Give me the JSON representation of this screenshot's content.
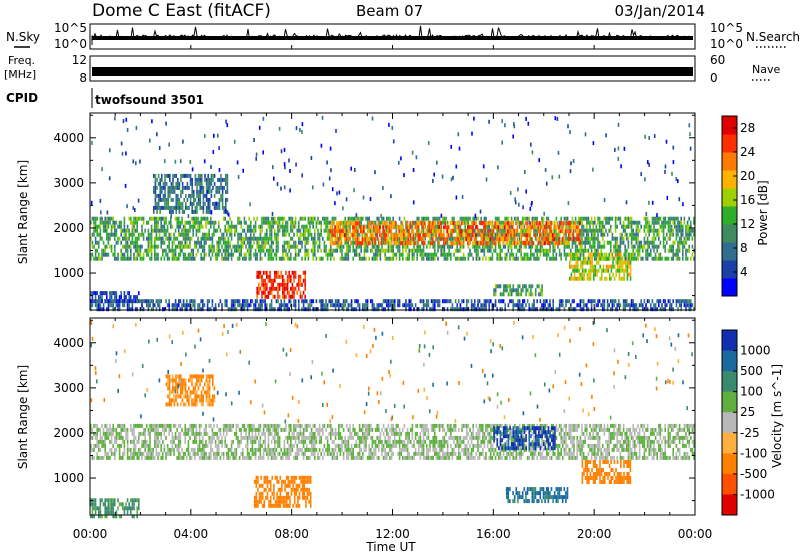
{
  "header": {
    "title": "Dome C East (fitACF)",
    "beam": "Beam 07",
    "date": "03/Jan/2014"
  },
  "summary": {
    "nsky_label": "N.Sky",
    "nsky_ticks": [
      "10^5",
      "10^0"
    ],
    "nsearch_label": "N.Search",
    "freq_label_line1": "Freq.",
    "freq_label_line2": "[MHz]",
    "freq_ticks": [
      "12",
      "8"
    ],
    "nave_ticks": [
      "60",
      "0"
    ],
    "nave_label": "Nave",
    "cpid_label": "CPID",
    "cpid_value": "twofsound 3501"
  },
  "panels": {
    "power": {
      "ylabel": "Slant Range [km]",
      "cbar_label": "Power [dB]"
    },
    "velocity": {
      "ylabel": "Slant Range [km]",
      "cbar_label": "Velocity [m s^-1]"
    }
  },
  "xaxis": {
    "label": "Time UT",
    "ticks": [
      "00:00",
      "04:00",
      "08:00",
      "12:00",
      "16:00",
      "20:00",
      "00:00"
    ]
  },
  "colors": {
    "power_scale": [
      "#0000ff",
      "#1a3fa8",
      "#2f6e8e",
      "#3f8a5e",
      "#2fae2a",
      "#a0d000",
      "#ffb300",
      "#ff7a00",
      "#ff3000",
      "#e00000"
    ],
    "velocity_scale": [
      "#1030b0",
      "#1a6aa0",
      "#3a8a70",
      "#60b040",
      "#b8b8b8",
      "#ffb040",
      "#ff8000",
      "#ff5000",
      "#e00000"
    ]
  },
  "chart_data": [
    {
      "type": "heatmap",
      "title": "Power",
      "xlabel": "Time UT",
      "ylabel": "Slant Range [km]",
      "x_range_hours": [
        0,
        24
      ],
      "ylim": [
        180,
        4550
      ],
      "y_ticks": [
        1000,
        2000,
        3000,
        4000
      ],
      "colorbar": {
        "label": "Power [dB]",
        "ticks": [
          4,
          8,
          12,
          16,
          20,
          24,
          28
        ],
        "range": [
          0,
          30
        ]
      },
      "regions": [
        {
          "t": [
            0.0,
            24.0
          ],
          "r": [
            1350,
            2250
          ],
          "level": 12,
          "note": "main echo band"
        },
        {
          "t": [
            9.5,
            19.5
          ],
          "r": [
            1650,
            2150
          ],
          "level": 23
        },
        {
          "t": [
            6.6,
            8.6
          ],
          "r": [
            450,
            1050
          ],
          "level": 27
        },
        {
          "t": [
            2.5,
            5.5
          ],
          "r": [
            2400,
            3200
          ],
          "level": 8
        },
        {
          "t": [
            16.0,
            18.0
          ],
          "r": [
            500,
            750
          ],
          "level": 12
        },
        {
          "t": [
            19.0,
            21.5
          ],
          "r": [
            900,
            1450
          ],
          "level": 17
        },
        {
          "t": [
            0.0,
            2.0
          ],
          "r": [
            400,
            600
          ],
          "level": 5
        },
        {
          "t": [
            0.0,
            24.0
          ],
          "r": [
            180,
            420
          ],
          "level": 6
        }
      ]
    },
    {
      "type": "heatmap",
      "title": "Velocity",
      "xlabel": "Time UT",
      "ylabel": "Slant Range [km]",
      "x_range_hours": [
        0,
        24
      ],
      "ylim": [
        180,
        4550
      ],
      "y_ticks": [
        1000,
        2000,
        3000,
        4000
      ],
      "colorbar": {
        "label": "Velocity [m s^-1]",
        "ticks": [
          1000,
          500,
          100,
          25,
          -25,
          -100,
          -500,
          -1000
        ]
      },
      "regions": [
        {
          "t": [
            0.0,
            24.0
          ],
          "r": [
            1450,
            2200
          ],
          "velocity": 0,
          "note": "ground scatter"
        },
        {
          "t": [
            16.0,
            18.5
          ],
          "r": [
            1700,
            2150
          ],
          "velocity": 600
        },
        {
          "t": [
            6.5,
            8.8
          ],
          "r": [
            400,
            1050
          ],
          "velocity": -300
        },
        {
          "t": [
            16.5,
            19.0
          ],
          "r": [
            450,
            800
          ],
          "velocity": 150
        },
        {
          "t": [
            19.5,
            21.5
          ],
          "r": [
            900,
            1400
          ],
          "velocity": -300
        },
        {
          "t": [
            0.0,
            2.0
          ],
          "r": [
            180,
            550
          ],
          "velocity": 50
        },
        {
          "t": [
            3.0,
            5.0
          ],
          "r": [
            2600,
            3300
          ],
          "velocity": -150
        }
      ]
    }
  ]
}
